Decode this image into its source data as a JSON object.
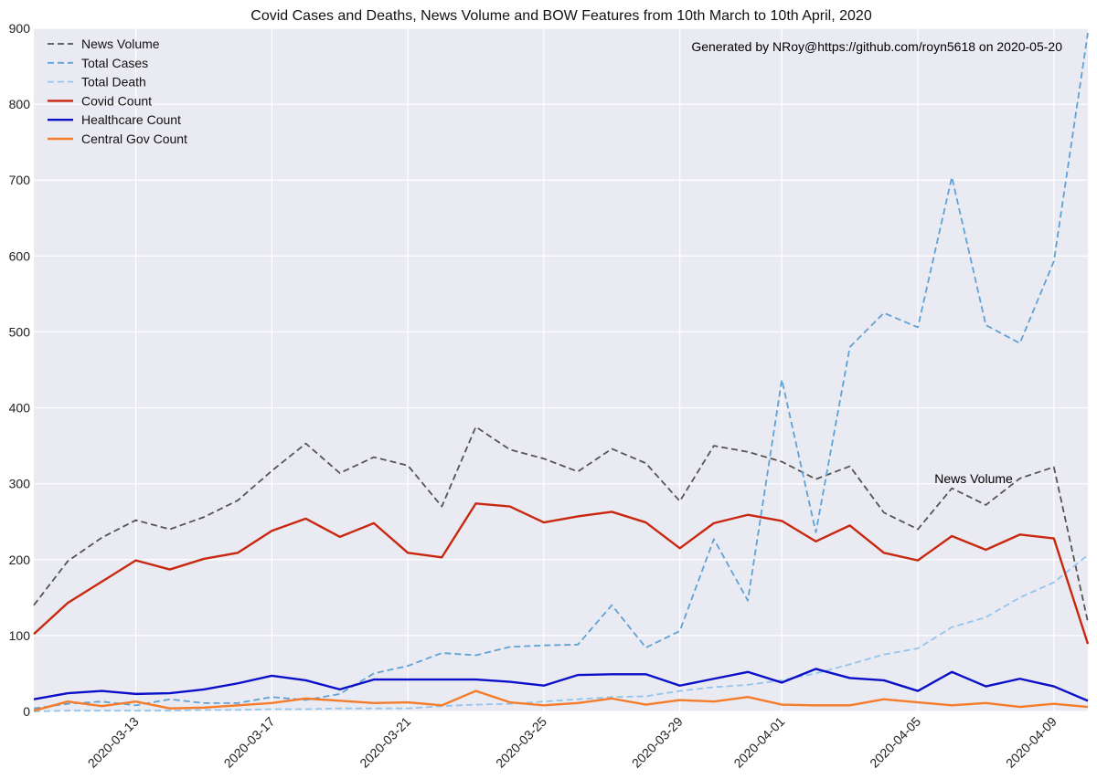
{
  "chart_data": {
    "type": "line",
    "title": "Covid Cases and Deaths, News Volume and BOW Features from 10th March to 10th April, 2020",
    "xlabel": "",
    "ylabel": "",
    "ylim": [
      0,
      900
    ],
    "yticks": [
      0,
      100,
      200,
      300,
      400,
      500,
      600,
      700,
      800,
      900
    ],
    "xlim": [
      "2020-03-10",
      "2020-04-10"
    ],
    "xticks": [
      "2020-03-13",
      "2020-03-17",
      "2020-03-21",
      "2020-03-25",
      "2020-03-29",
      "2020-04-01",
      "2020-04-05",
      "2020-04-09"
    ],
    "grid": true,
    "legend_position": "top-left",
    "x": [
      "2020-03-10",
      "2020-03-11",
      "2020-03-12",
      "2020-03-13",
      "2020-03-14",
      "2020-03-15",
      "2020-03-16",
      "2020-03-17",
      "2020-03-18",
      "2020-03-19",
      "2020-03-20",
      "2020-03-21",
      "2020-03-22",
      "2020-03-23",
      "2020-03-24",
      "2020-03-25",
      "2020-03-26",
      "2020-03-27",
      "2020-03-28",
      "2020-03-29",
      "2020-03-30",
      "2020-03-31",
      "2020-04-01",
      "2020-04-02",
      "2020-04-03",
      "2020-04-04",
      "2020-04-05",
      "2020-04-06",
      "2020-04-07",
      "2020-04-08",
      "2020-04-09",
      "2020-04-10"
    ],
    "series": [
      {
        "name": "News Volume",
        "color": "#555555",
        "style": "dashed",
        "values": [
          140,
          198,
          229,
          252,
          240,
          256,
          278,
          317,
          353,
          314,
          335,
          324,
          270,
          375,
          345,
          333,
          316,
          346,
          327,
          277,
          350,
          342,
          329,
          306,
          323,
          262,
          240,
          294,
          272,
          307,
          322,
          118
        ]
      },
      {
        "name": "Total Cases",
        "color": "#5fa2d6",
        "style": "dashed",
        "values": [
          4,
          10,
          13,
          8,
          16,
          11,
          11,
          19,
          15,
          23,
          50,
          60,
          77,
          74,
          85,
          87,
          88,
          140,
          84,
          106,
          227,
          146,
          437,
          236,
          480,
          525,
          506,
          704,
          509,
          485,
          593,
          894
        ]
      },
      {
        "name": "Total Death",
        "color": "#92c5ed",
        "style": "dashed",
        "values": [
          0,
          1,
          1,
          1,
          1,
          2,
          2,
          3,
          3,
          4,
          4,
          4,
          7,
          9,
          10,
          13,
          16,
          19,
          20,
          27,
          32,
          35,
          41,
          50,
          62,
          75,
          83,
          111,
          124,
          150,
          170,
          206
        ]
      },
      {
        "name": "Covid Count",
        "color": "#c8280f",
        "style": "solid",
        "values": [
          102,
          143,
          171,
          199,
          187,
          201,
          209,
          238,
          254,
          230,
          248,
          209,
          203,
          274,
          270,
          249,
          257,
          263,
          249,
          215,
          248,
          259,
          251,
          224,
          245,
          209,
          199,
          231,
          213,
          233,
          228,
          89
        ]
      },
      {
        "name": "Healthcare Count",
        "color": "#0a10c8",
        "style": "solid",
        "values": [
          16,
          24,
          27,
          23,
          24,
          29,
          37,
          47,
          41,
          29,
          42,
          42,
          42,
          42,
          39,
          34,
          48,
          49,
          49,
          34,
          43,
          52,
          38,
          56,
          44,
          41,
          27,
          52,
          33,
          43,
          33,
          14
        ]
      },
      {
        "name": "Central Gov Count",
        "color": "#f57c2a",
        "style": "solid",
        "values": [
          1,
          13,
          7,
          13,
          4,
          5,
          8,
          11,
          17,
          14,
          11,
          12,
          8,
          27,
          12,
          8,
          11,
          17,
          9,
          15,
          13,
          19,
          9,
          8,
          8,
          16,
          12,
          8,
          11,
          6,
          10,
          6
        ]
      }
    ],
    "annotations": [
      {
        "text": "Generated by NRoy@https://github.com/royn5618 on 2020-05-20",
        "position": "top-right"
      },
      {
        "text": "News Volume",
        "x": "2020-04-06",
        "y": 307
      }
    ]
  }
}
